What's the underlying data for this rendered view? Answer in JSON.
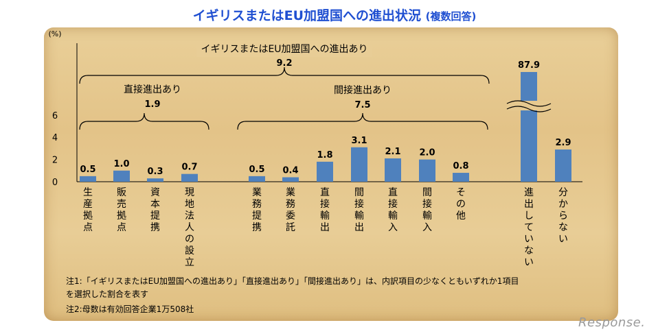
{
  "title": {
    "main": "イギリスまたはEU加盟国への進出状況",
    "sub": "(複数回答)"
  },
  "chart_data": {
    "type": "bar",
    "unit_label": "(%)",
    "y_ticks": [
      0,
      2,
      4,
      6
    ],
    "ylim": [
      0,
      7
    ],
    "axis_break": true,
    "bar_color": "#4f81bd",
    "categories": [
      "生産拠点",
      "販売拠点",
      "資本提携",
      "現地法人の設立",
      "業務提携",
      "業務委託",
      "直接輸出",
      "間接輸出",
      "直接輸入",
      "間接輸入",
      "その他",
      "進出していない",
      "分からない"
    ],
    "values": [
      0.5,
      1.0,
      0.3,
      0.7,
      0.5,
      0.4,
      1.8,
      3.1,
      2.1,
      2.0,
      0.8,
      87.9,
      2.9
    ],
    "value_labels": [
      "0.5",
      "1.0",
      "0.3",
      "0.7",
      "0.5",
      "0.4",
      "1.8",
      "3.1",
      "2.1",
      "2.0",
      "0.8",
      "87.9",
      "2.9"
    ],
    "groups": {
      "overall": {
        "label": "イギリスまたはEU加盟国への進出あり",
        "value": "9.2"
      },
      "direct": {
        "label": "直接進出あり",
        "value": "1.9"
      },
      "indirect": {
        "label": "間接進出あり",
        "value": "7.5"
      }
    }
  },
  "notes": {
    "note1_line1": "注1:「イギリスまたはEU加盟国への進出あり」「直接進出あり」「間接進出あり」は、内訳項目の少なくともいずれか1項目",
    "note1_line2": "を選択した割合を表す",
    "note2": "注2:母数は有効回答企業1万508社"
  },
  "logo": "Response."
}
